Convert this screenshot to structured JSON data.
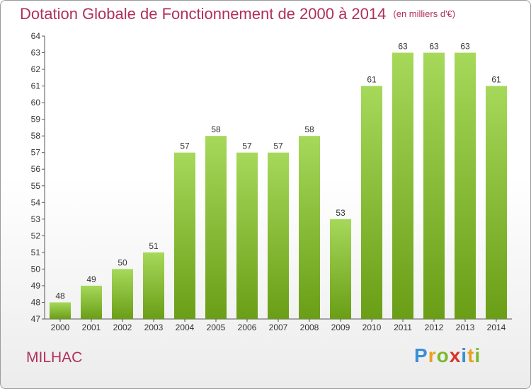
{
  "chart_data": {
    "type": "bar",
    "title": "Dotation Globale de Fonctionnement de 2000 à 2014",
    "subtitle": "(en milliers d'€)",
    "categories": [
      "2000",
      "2001",
      "2002",
      "2003",
      "2004",
      "2005",
      "2006",
      "2007",
      "2008",
      "2009",
      "2010",
      "2011",
      "2012",
      "2013",
      "2014"
    ],
    "values": [
      48,
      49,
      50,
      51,
      57,
      58,
      57,
      57,
      58,
      53,
      61,
      63,
      63,
      63,
      61
    ],
    "ylim": [
      47,
      64
    ],
    "yticks": [
      47,
      48,
      49,
      50,
      51,
      52,
      53,
      54,
      55,
      56,
      57,
      58,
      59,
      60,
      61,
      62,
      63,
      64
    ],
    "grid": false,
    "colors": {
      "bar_top": "#a6d85a",
      "bar_bottom": "#6a9e16",
      "title": "#b0305a",
      "axis": "#555555"
    }
  },
  "commune": "MILHAC",
  "logo": {
    "letters": [
      "P",
      "r",
      "o",
      "x",
      "i",
      "t",
      "i"
    ],
    "colors": [
      "#3a8fd6",
      "#e8a020",
      "#7cb82f",
      "#d8342c",
      "#3a8fd6",
      "#e8a020",
      "#7cb82f"
    ]
  }
}
